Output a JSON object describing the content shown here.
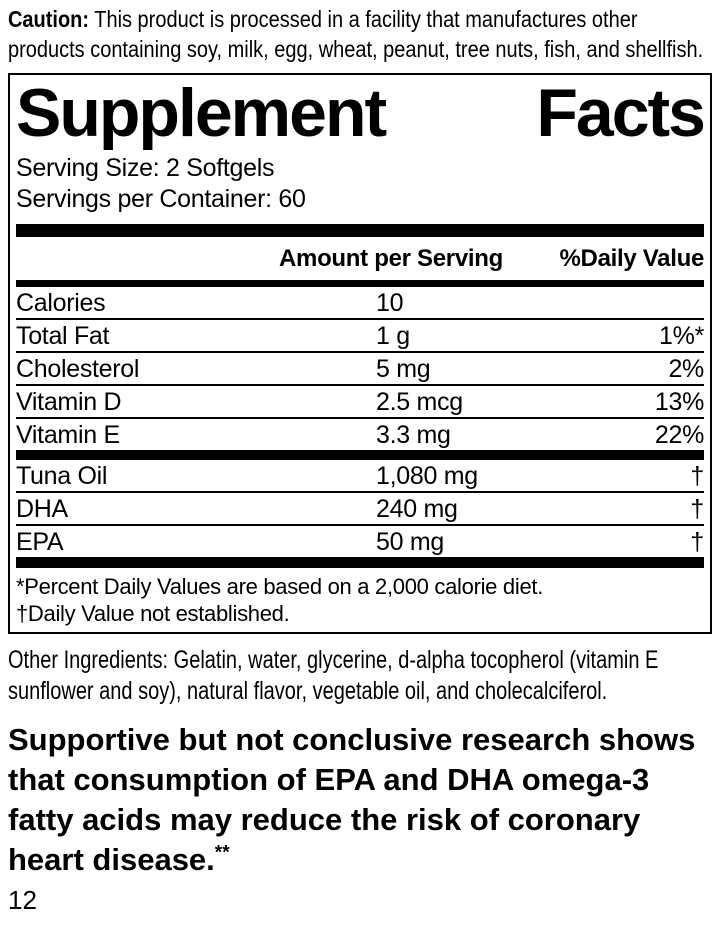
{
  "caution": {
    "label": "Caution:",
    "text": "This product is processed in a facility that manufactures other products containing soy, milk, egg, wheat, peanut, tree nuts, fish, and shellfish."
  },
  "facts": {
    "title_left": "Supplement",
    "title_right": "Facts",
    "serving_size": "Serving Size: 2 Softgels",
    "servings_per_container": "Servings per Container: 60",
    "columns": {
      "amount": "Amount per Serving",
      "daily_value": "%Daily Value"
    },
    "nutrients": [
      {
        "name": "Calories",
        "amount": "10",
        "dv": ""
      },
      {
        "name": "Total Fat",
        "amount": "1 g",
        "dv": "1%*"
      },
      {
        "name": "Cholesterol",
        "amount": "5 mg",
        "dv": "2%"
      },
      {
        "name": "Vitamin D",
        "amount": "2.5 mcg",
        "dv": "13%"
      },
      {
        "name": "Vitamin E",
        "amount": "3.3 mg",
        "dv": "22%"
      }
    ],
    "blend": [
      {
        "name": "Tuna Oil",
        "amount": "1,080 mg",
        "dv": "†"
      },
      {
        "name": "DHA",
        "amount": "240 mg",
        "dv": "†"
      },
      {
        "name": "EPA",
        "amount": "50 mg",
        "dv": "†"
      }
    ],
    "footnotes": [
      "*Percent Daily Values are based on a 2,000 calorie diet.",
      "†Daily Value not established."
    ]
  },
  "other_ingredients": "Other Ingredients: Gelatin, water, glycerine, d-alpha tocopherol (vitamin E sunflower and soy), natural flavor, vegetable oil, and cholecalciferol.",
  "claim": {
    "text": "Supportive but not conclusive research shows that consumption of EPA and DHA omega-3 fatty acids may reduce the risk of coronary heart disease.",
    "superscript": "**"
  },
  "page_number": "12",
  "colors": {
    "text": "#000000",
    "background": "#ffffff",
    "rule": "#000000"
  }
}
